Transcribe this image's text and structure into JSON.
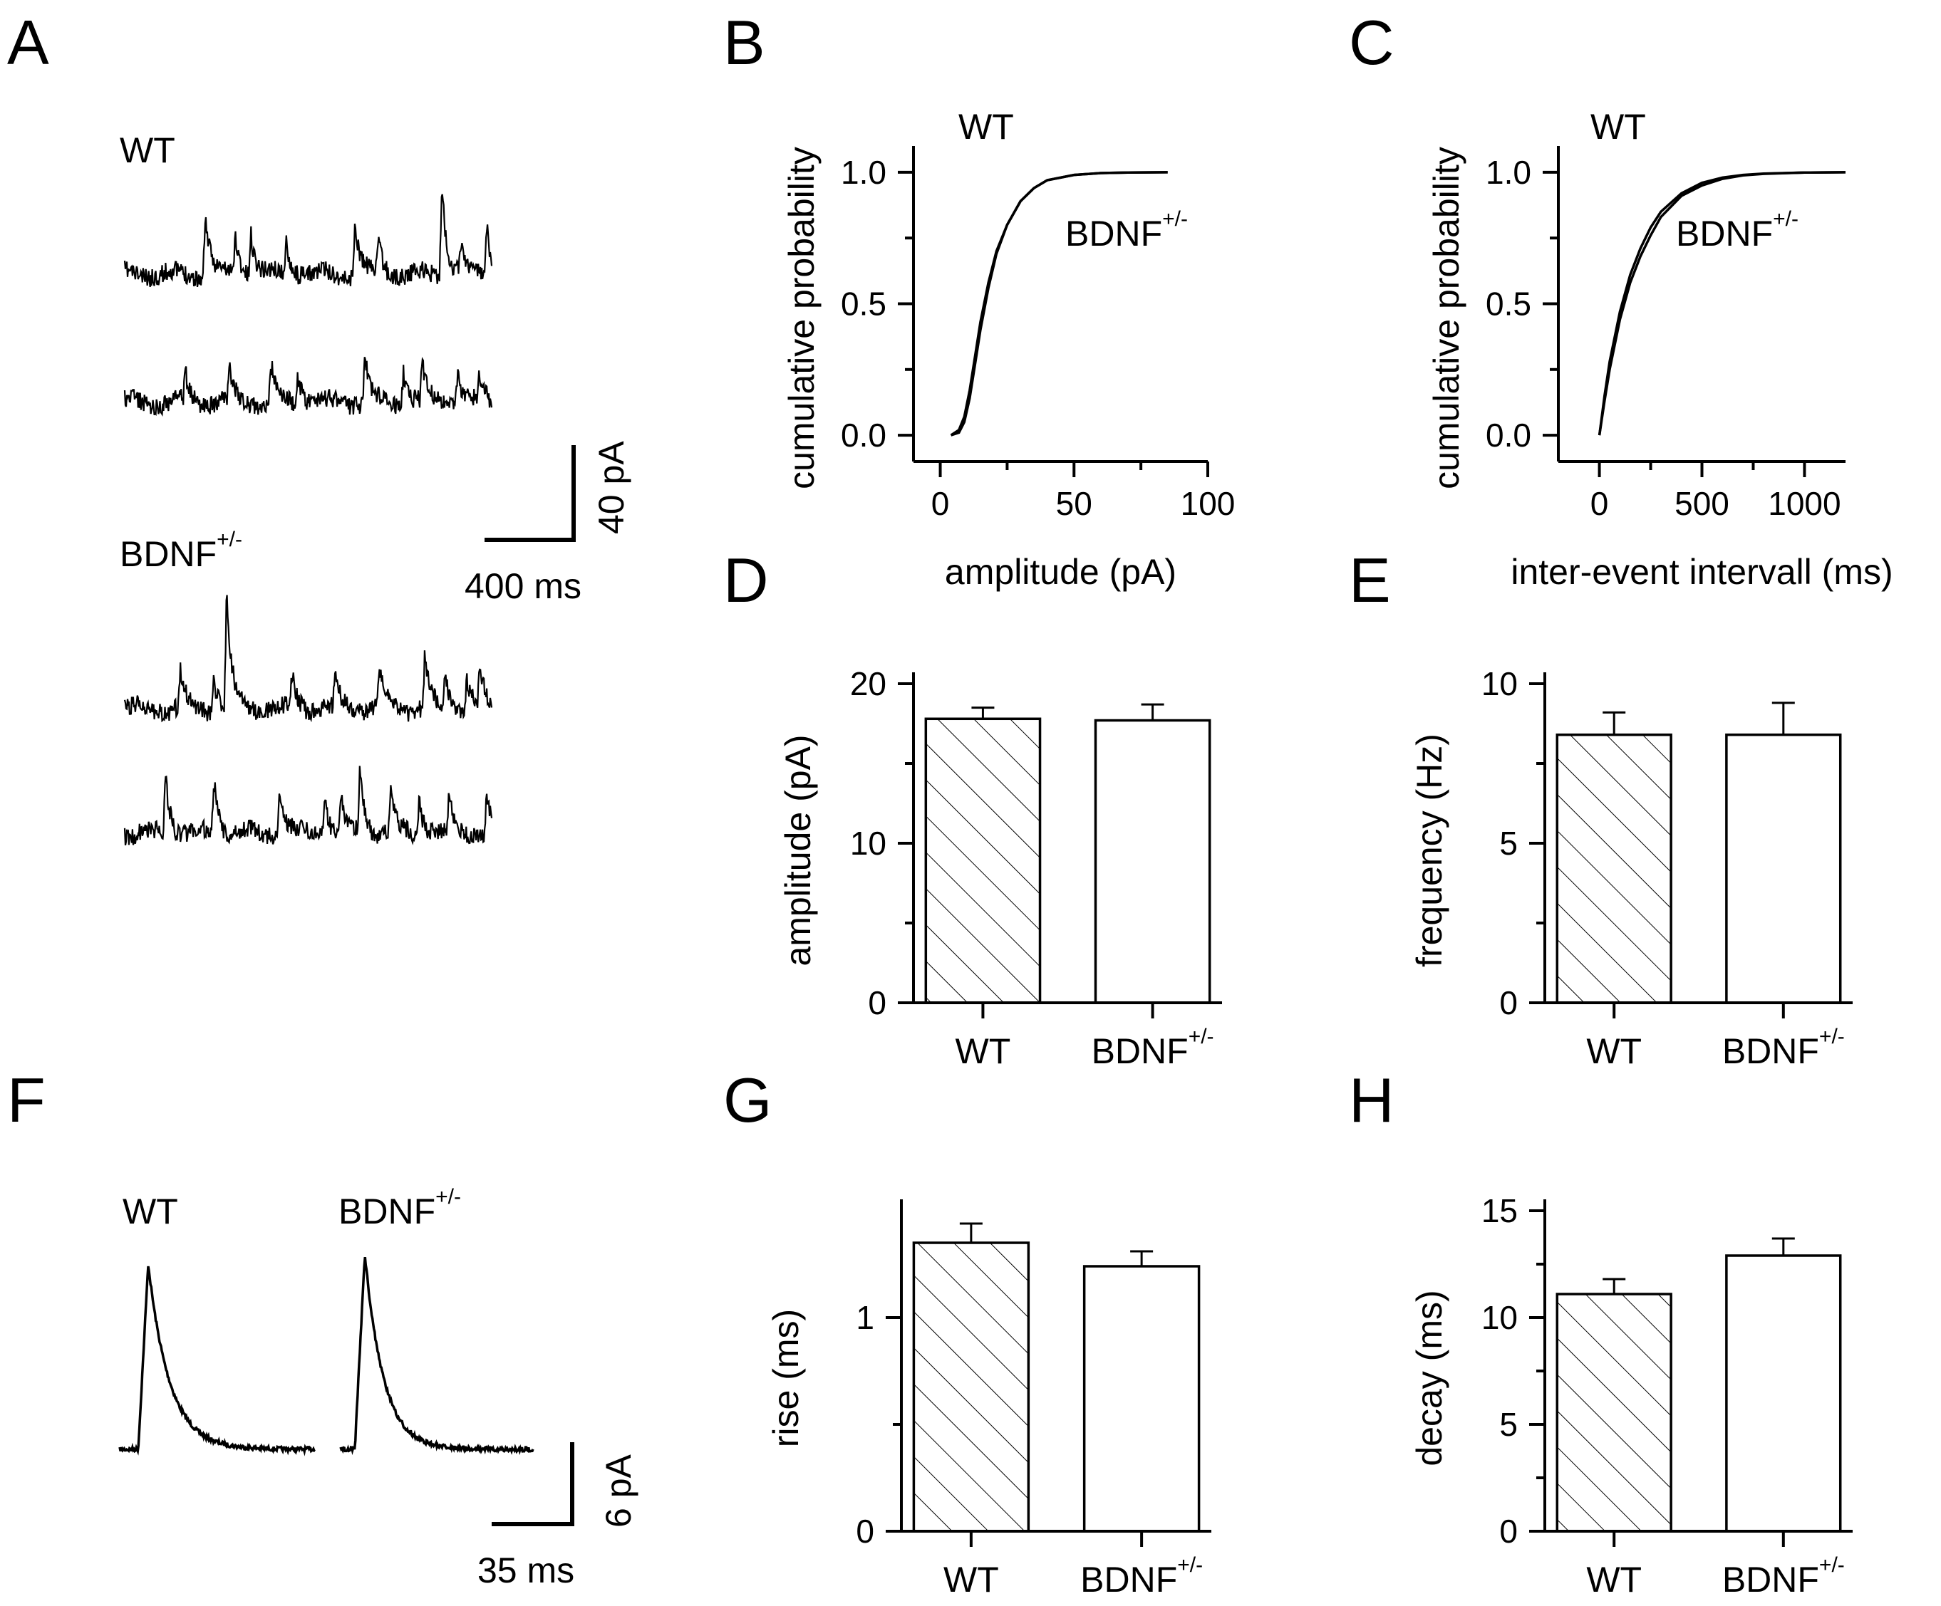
{
  "panel_labels": {
    "A": "A",
    "B": "B",
    "C": "C",
    "D": "D",
    "E": "E",
    "F": "F",
    "G": "G",
    "H": "H"
  },
  "labels": {
    "wt": "WT",
    "bdnf_base": "BDNF",
    "bdnf_sup": "+/-",
    "scale_a_y": "40 pA",
    "scale_a_x": "400 ms",
    "scale_f_y": "6 pA",
    "scale_f_x": "35 ms"
  },
  "chart_data": [
    {
      "panel": "B",
      "type": "line",
      "xlabel": "amplitude (pA)",
      "ylabel": "cumulative probability",
      "xlim": [
        -10,
        100
      ],
      "ylim": [
        -0.1,
        1.1
      ],
      "xticks": [
        0,
        50,
        100
      ],
      "yticks": [
        0.0,
        0.5,
        1.0
      ],
      "xtick_labels": [
        "0",
        "50",
        "100"
      ],
      "ytick_labels": [
        "0.0",
        "0.5",
        "1.0"
      ],
      "series": [
        {
          "name": "WT",
          "x": [
            4,
            7,
            9,
            11,
            13,
            15,
            18,
            21,
            25,
            30,
            35,
            40,
            50,
            60,
            70,
            85
          ],
          "y": [
            0,
            0.02,
            0.07,
            0.17,
            0.3,
            0.43,
            0.58,
            0.7,
            0.8,
            0.89,
            0.94,
            0.97,
            0.99,
            0.997,
            0.999,
            1.0
          ]
        },
        {
          "name": "BDNF+/-",
          "x": [
            4,
            7,
            9,
            11,
            13,
            15,
            18,
            21,
            25,
            30,
            35,
            40,
            50,
            60,
            70,
            85
          ],
          "y": [
            0,
            0.01,
            0.05,
            0.14,
            0.27,
            0.4,
            0.56,
            0.69,
            0.8,
            0.89,
            0.94,
            0.97,
            0.99,
            0.997,
            0.999,
            1.0
          ]
        }
      ]
    },
    {
      "panel": "C",
      "type": "line",
      "xlabel": "inter-event intervall (ms)",
      "ylabel": "cumulative probability",
      "xlim": [
        -200,
        1200
      ],
      "ylim": [
        -0.1,
        1.1
      ],
      "xticks": [
        0,
        500,
        1000
      ],
      "yticks": [
        0.0,
        0.5,
        1.0
      ],
      "xtick_labels": [
        "0",
        "500",
        "1000"
      ],
      "ytick_labels": [
        "0.0",
        "0.5",
        "1.0"
      ],
      "series": [
        {
          "name": "WT",
          "x": [
            0,
            25,
            50,
            100,
            150,
            200,
            250,
            300,
            400,
            500,
            600,
            700,
            800,
            1000,
            1200
          ],
          "y": [
            0,
            0.15,
            0.28,
            0.47,
            0.61,
            0.71,
            0.79,
            0.85,
            0.92,
            0.96,
            0.98,
            0.99,
            0.995,
            0.999,
            1.0
          ]
        },
        {
          "name": "BDNF+/-",
          "x": [
            0,
            25,
            50,
            100,
            150,
            200,
            250,
            300,
            400,
            500,
            600,
            700,
            800,
            1000,
            1200
          ],
          "y": [
            0,
            0.13,
            0.25,
            0.44,
            0.58,
            0.68,
            0.76,
            0.83,
            0.91,
            0.95,
            0.975,
            0.988,
            0.994,
            0.999,
            1.0
          ]
        }
      ]
    },
    {
      "panel": "D",
      "type": "bar",
      "ylabel": "amplitude (pA)",
      "categories": [
        "WT",
        "BDNF+/-"
      ],
      "values": [
        17.8,
        17.7
      ],
      "errors": [
        0.7,
        1.0
      ],
      "ylim": [
        0,
        20
      ],
      "yticks": [
        0,
        10,
        20
      ],
      "ytick_labels": [
        "0",
        "10",
        "20"
      ],
      "hatched": [
        true,
        false
      ]
    },
    {
      "panel": "E",
      "type": "bar",
      "ylabel": "frequency (Hz)",
      "categories": [
        "WT",
        "BDNF+/-"
      ],
      "values": [
        8.4,
        8.4
      ],
      "errors": [
        0.7,
        1.0
      ],
      "ylim": [
        0,
        10
      ],
      "yticks": [
        0,
        5,
        10
      ],
      "ytick_labels": [
        "0",
        "5",
        "10"
      ],
      "hatched": [
        true,
        false
      ]
    },
    {
      "panel": "G",
      "type": "bar",
      "ylabel": "rise (ms)",
      "categories": [
        "WT",
        "BDNF+/-"
      ],
      "values": [
        1.35,
        1.24
      ],
      "errors": [
        0.09,
        0.07
      ],
      "ylim": [
        0,
        1.5
      ],
      "yticks": [
        0,
        1
      ],
      "ytick_labels": [
        "0",
        "1"
      ],
      "hatched": [
        true,
        false
      ]
    },
    {
      "panel": "H",
      "type": "bar",
      "ylabel": "decay (ms)",
      "categories": [
        "WT",
        "BDNF+/-"
      ],
      "values": [
        11.1,
        12.9
      ],
      "errors": [
        0.7,
        0.8
      ],
      "ylim": [
        0,
        15
      ],
      "yticks": [
        0,
        5,
        10,
        15
      ],
      "ytick_labels": [
        "0",
        "5",
        "10",
        "15"
      ],
      "hatched": [
        true,
        false
      ]
    }
  ]
}
